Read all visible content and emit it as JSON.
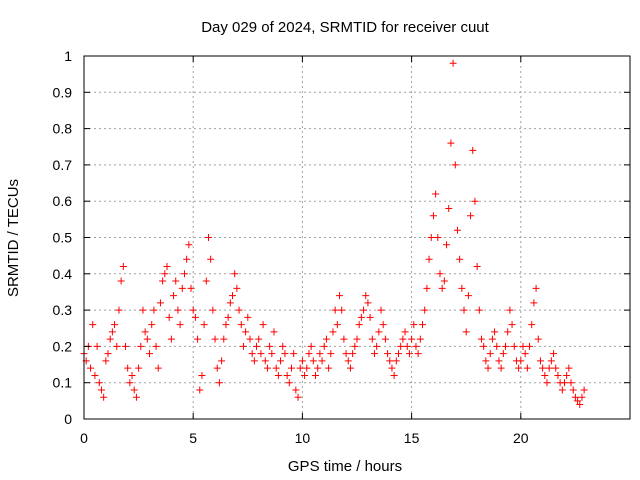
{
  "chart_data": {
    "type": "scatter",
    "title": "Day 029 of 2024, SRMTID for receiver cuut",
    "xlabel": "GPS time / hours",
    "ylabel": "SRMTID / TECUs",
    "xlim": [
      0,
      25
    ],
    "ylim": [
      0,
      1
    ],
    "x_ticks": [
      0,
      5,
      10,
      15,
      20
    ],
    "x_tick_labels": [
      "0",
      "5",
      "10",
      "15",
      "20"
    ],
    "y_ticks": [
      0,
      0.1,
      0.2,
      0.3,
      0.4,
      0.5,
      0.6,
      0.7,
      0.8,
      0.9,
      1
    ],
    "y_tick_labels": [
      "0",
      "0.1",
      "0.2",
      "0.3",
      "0.4",
      "0.5",
      "0.6",
      "0.7",
      "0.8",
      "0.9",
      "1"
    ],
    "grid": true,
    "marker": "+",
    "color": "#ff0000",
    "series": [
      {
        "name": "SRMTID",
        "points": [
          [
            0.0,
            0.18
          ],
          [
            0.1,
            0.16
          ],
          [
            0.2,
            0.2
          ],
          [
            0.3,
            0.14
          ],
          [
            0.4,
            0.26
          ],
          [
            0.5,
            0.12
          ],
          [
            0.6,
            0.2
          ],
          [
            0.7,
            0.1
          ],
          [
            0.8,
            0.08
          ],
          [
            0.9,
            0.06
          ],
          [
            1.0,
            0.16
          ],
          [
            1.1,
            0.18
          ],
          [
            1.2,
            0.22
          ],
          [
            1.3,
            0.24
          ],
          [
            1.4,
            0.26
          ],
          [
            1.5,
            0.2
          ],
          [
            1.6,
            0.3
          ],
          [
            1.7,
            0.38
          ],
          [
            1.8,
            0.42
          ],
          [
            1.9,
            0.2
          ],
          [
            2.0,
            0.14
          ],
          [
            2.1,
            0.1
          ],
          [
            2.2,
            0.12
          ],
          [
            2.3,
            0.08
          ],
          [
            2.4,
            0.06
          ],
          [
            2.5,
            0.14
          ],
          [
            2.6,
            0.2
          ],
          [
            2.7,
            0.3
          ],
          [
            2.8,
            0.24
          ],
          [
            2.9,
            0.22
          ],
          [
            3.0,
            0.18
          ],
          [
            3.1,
            0.26
          ],
          [
            3.2,
            0.3
          ],
          [
            3.3,
            0.2
          ],
          [
            3.4,
            0.14
          ],
          [
            3.5,
            0.32
          ],
          [
            3.6,
            0.38
          ],
          [
            3.7,
            0.4
          ],
          [
            3.8,
            0.42
          ],
          [
            3.9,
            0.28
          ],
          [
            4.0,
            0.22
          ],
          [
            4.1,
            0.34
          ],
          [
            4.2,
            0.38
          ],
          [
            4.3,
            0.3
          ],
          [
            4.4,
            0.26
          ],
          [
            4.5,
            0.36
          ],
          [
            4.6,
            0.4
          ],
          [
            4.7,
            0.44
          ],
          [
            4.8,
            0.48
          ],
          [
            4.9,
            0.36
          ],
          [
            5.0,
            0.3
          ],
          [
            5.1,
            0.28
          ],
          [
            5.2,
            0.22
          ],
          [
            5.3,
            0.08
          ],
          [
            5.4,
            0.12
          ],
          [
            5.5,
            0.26
          ],
          [
            5.6,
            0.38
          ],
          [
            5.7,
            0.5
          ],
          [
            5.8,
            0.44
          ],
          [
            5.9,
            0.3
          ],
          [
            6.0,
            0.22
          ],
          [
            6.1,
            0.14
          ],
          [
            6.2,
            0.1
          ],
          [
            6.3,
            0.16
          ],
          [
            6.4,
            0.22
          ],
          [
            6.5,
            0.26
          ],
          [
            6.6,
            0.28
          ],
          [
            6.7,
            0.32
          ],
          [
            6.8,
            0.34
          ],
          [
            6.9,
            0.4
          ],
          [
            7.0,
            0.36
          ],
          [
            7.1,
            0.3
          ],
          [
            7.2,
            0.26
          ],
          [
            7.3,
            0.2
          ],
          [
            7.4,
            0.24
          ],
          [
            7.5,
            0.28
          ],
          [
            7.6,
            0.22
          ],
          [
            7.7,
            0.18
          ],
          [
            7.8,
            0.16
          ],
          [
            7.9,
            0.2
          ],
          [
            8.0,
            0.22
          ],
          [
            8.1,
            0.18
          ],
          [
            8.2,
            0.26
          ],
          [
            8.3,
            0.16
          ],
          [
            8.4,
            0.14
          ],
          [
            8.5,
            0.2
          ],
          [
            8.6,
            0.18
          ],
          [
            8.7,
            0.24
          ],
          [
            8.8,
            0.14
          ],
          [
            8.9,
            0.12
          ],
          [
            9.0,
            0.16
          ],
          [
            9.1,
            0.2
          ],
          [
            9.2,
            0.18
          ],
          [
            9.3,
            0.12
          ],
          [
            9.4,
            0.1
          ],
          [
            9.5,
            0.14
          ],
          [
            9.6,
            0.18
          ],
          [
            9.7,
            0.08
          ],
          [
            9.8,
            0.06
          ],
          [
            9.9,
            0.14
          ],
          [
            10.0,
            0.16
          ],
          [
            10.1,
            0.12
          ],
          [
            10.2,
            0.14
          ],
          [
            10.3,
            0.18
          ],
          [
            10.4,
            0.2
          ],
          [
            10.5,
            0.16
          ],
          [
            10.6,
            0.12
          ],
          [
            10.7,
            0.14
          ],
          [
            10.8,
            0.18
          ],
          [
            10.9,
            0.16
          ],
          [
            11.0,
            0.2
          ],
          [
            11.1,
            0.22
          ],
          [
            11.2,
            0.14
          ],
          [
            11.3,
            0.18
          ],
          [
            11.4,
            0.24
          ],
          [
            11.5,
            0.3
          ],
          [
            11.6,
            0.26
          ],
          [
            11.7,
            0.34
          ],
          [
            11.8,
            0.3
          ],
          [
            11.9,
            0.22
          ],
          [
            12.0,
            0.18
          ],
          [
            12.1,
            0.16
          ],
          [
            12.2,
            0.14
          ],
          [
            12.3,
            0.18
          ],
          [
            12.4,
            0.2
          ],
          [
            12.5,
            0.22
          ],
          [
            12.6,
            0.26
          ],
          [
            12.7,
            0.28
          ],
          [
            12.8,
            0.3
          ],
          [
            12.9,
            0.34
          ],
          [
            13.0,
            0.32
          ],
          [
            13.1,
            0.28
          ],
          [
            13.2,
            0.22
          ],
          [
            13.3,
            0.18
          ],
          [
            13.4,
            0.2
          ],
          [
            13.5,
            0.24
          ],
          [
            13.6,
            0.3
          ],
          [
            13.7,
            0.26
          ],
          [
            13.8,
            0.22
          ],
          [
            13.9,
            0.18
          ],
          [
            14.0,
            0.16
          ],
          [
            14.1,
            0.14
          ],
          [
            14.2,
            0.12
          ],
          [
            14.3,
            0.16
          ],
          [
            14.4,
            0.18
          ],
          [
            14.5,
            0.2
          ],
          [
            14.6,
            0.22
          ],
          [
            14.7,
            0.24
          ],
          [
            14.8,
            0.2
          ],
          [
            14.9,
            0.18
          ],
          [
            15.0,
            0.22
          ],
          [
            15.1,
            0.26
          ],
          [
            15.2,
            0.2
          ],
          [
            15.3,
            0.18
          ],
          [
            15.4,
            0.22
          ],
          [
            15.5,
            0.26
          ],
          [
            15.6,
            0.3
          ],
          [
            15.7,
            0.36
          ],
          [
            15.8,
            0.44
          ],
          [
            15.9,
            0.5
          ],
          [
            16.0,
            0.56
          ],
          [
            16.1,
            0.62
          ],
          [
            16.2,
            0.5
          ],
          [
            16.3,
            0.4
          ],
          [
            16.4,
            0.36
          ],
          [
            16.5,
            0.38
          ],
          [
            16.6,
            0.48
          ],
          [
            16.7,
            0.58
          ],
          [
            16.8,
            0.76
          ],
          [
            16.9,
            0.98
          ],
          [
            17.0,
            0.7
          ],
          [
            17.1,
            0.52
          ],
          [
            17.2,
            0.44
          ],
          [
            17.3,
            0.36
          ],
          [
            17.4,
            0.3
          ],
          [
            17.5,
            0.24
          ],
          [
            17.6,
            0.34
          ],
          [
            17.7,
            0.56
          ],
          [
            17.8,
            0.74
          ],
          [
            17.9,
            0.6
          ],
          [
            18.0,
            0.42
          ],
          [
            18.1,
            0.3
          ],
          [
            18.2,
            0.22
          ],
          [
            18.3,
            0.2
          ],
          [
            18.4,
            0.16
          ],
          [
            18.5,
            0.14
          ],
          [
            18.6,
            0.18
          ],
          [
            18.7,
            0.22
          ],
          [
            18.8,
            0.24
          ],
          [
            18.9,
            0.2
          ],
          [
            19.0,
            0.16
          ],
          [
            19.1,
            0.14
          ],
          [
            19.2,
            0.18
          ],
          [
            19.3,
            0.2
          ],
          [
            19.4,
            0.24
          ],
          [
            19.5,
            0.3
          ],
          [
            19.6,
            0.26
          ],
          [
            19.7,
            0.2
          ],
          [
            19.8,
            0.16
          ],
          [
            19.9,
            0.14
          ],
          [
            20.0,
            0.16
          ],
          [
            20.1,
            0.2
          ],
          [
            20.2,
            0.18
          ],
          [
            20.3,
            0.14
          ],
          [
            20.4,
            0.2
          ],
          [
            20.5,
            0.26
          ],
          [
            20.6,
            0.32
          ],
          [
            20.7,
            0.36
          ],
          [
            20.8,
            0.22
          ],
          [
            20.9,
            0.16
          ],
          [
            21.0,
            0.14
          ],
          [
            21.1,
            0.12
          ],
          [
            21.2,
            0.1
          ],
          [
            21.3,
            0.14
          ],
          [
            21.4,
            0.16
          ],
          [
            21.5,
            0.18
          ],
          [
            21.6,
            0.14
          ],
          [
            21.7,
            0.12
          ],
          [
            21.8,
            0.1
          ],
          [
            21.9,
            0.08
          ],
          [
            22.0,
            0.1
          ],
          [
            22.1,
            0.12
          ],
          [
            22.2,
            0.14
          ],
          [
            22.3,
            0.1
          ],
          [
            22.4,
            0.08
          ],
          [
            22.5,
            0.06
          ],
          [
            22.6,
            0.05
          ],
          [
            22.7,
            0.04
          ],
          [
            22.8,
            0.06
          ],
          [
            22.9,
            0.08
          ]
        ]
      }
    ]
  }
}
